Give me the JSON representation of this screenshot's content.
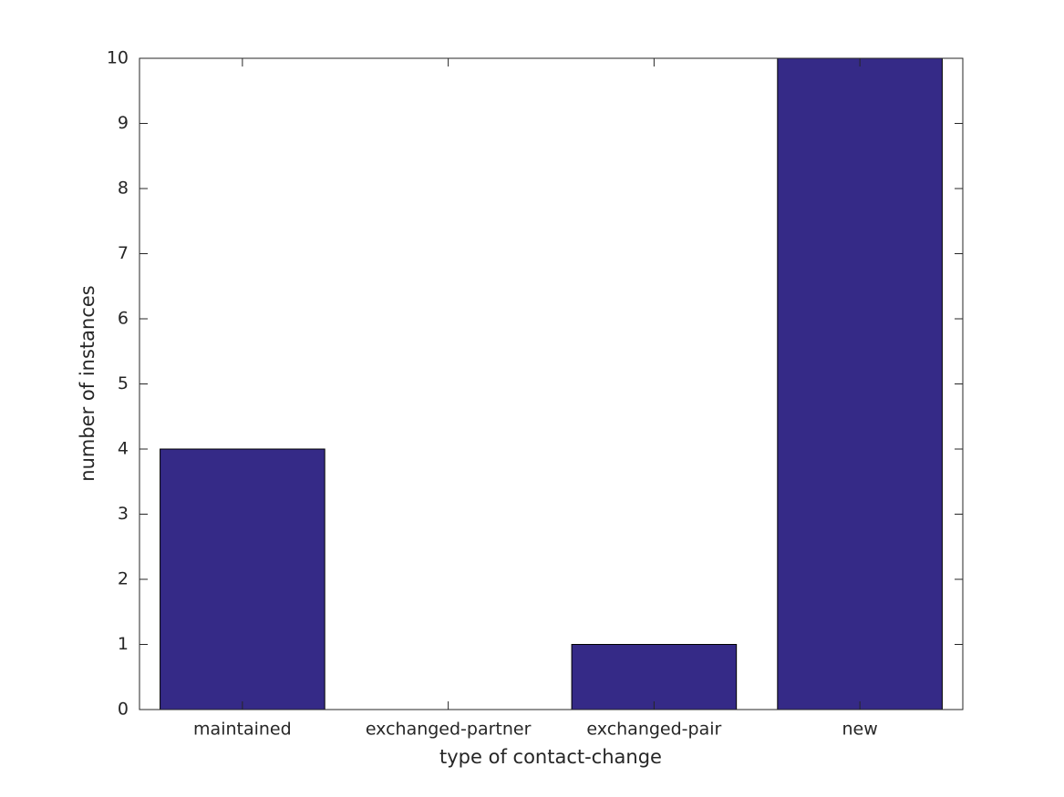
{
  "chart_data": {
    "type": "bar",
    "xlabel": "type of contact-change",
    "ylabel": "number of instances",
    "categories": [
      "maintained",
      "exchanged-partner",
      "exchanged-pair",
      "new"
    ],
    "values": [
      4,
      0,
      1,
      10
    ],
    "color": "#352a87",
    "ylim": [
      0,
      10
    ],
    "yticks": [
      0,
      1,
      2,
      3,
      4,
      5,
      6,
      7,
      8,
      9,
      10
    ],
    "grid": false
  }
}
